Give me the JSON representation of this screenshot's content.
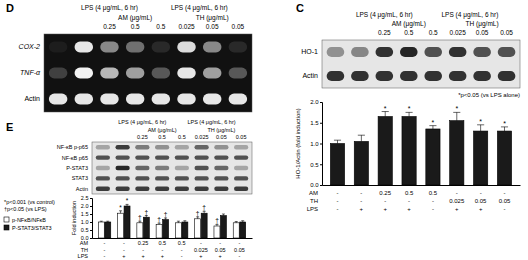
{
  "panels": [
    {
      "label": "D",
      "headers": [
        "LPS (4 μg/mL, 6 hr)",
        "LPS (4 μg/mL, 6 hr)"
      ],
      "agents": [
        "AM (μg/mL)",
        "TH (μg/mL)"
      ],
      "doses": [
        null,
        null,
        0.25,
        0.5,
        0.5,
        0.025,
        0.05,
        0.05
      ],
      "rows": [
        {
          "label": "COX-2",
          "intensity": [
            0.05,
            0.9,
            0.5,
            0.4,
            0.1,
            0.85,
            0.5,
            0.1
          ]
        },
        {
          "label": "TNF-α",
          "intensity": [
            0.2,
            0.95,
            0.7,
            0.6,
            0.3,
            0.9,
            0.6,
            0.3
          ]
        },
        {
          "label": "Actin",
          "intensity": [
            0.9,
            0.9,
            0.9,
            0.9,
            0.9,
            0.9,
            0.9,
            0.9
          ]
        }
      ]
    },
    {
      "label": "C",
      "headers": [
        "LPS (4 μg/mL, 6 hr)",
        "LPS (4 μg/mL, 6 hr)"
      ],
      "agents": [
        "AM (μg/mL)",
        "TH (μg/mL)"
      ],
      "doses": [
        null,
        null,
        0.25,
        0.5,
        0.5,
        0.025,
        0.05,
        0.05
      ],
      "rows": [
        {
          "label": "HO-1",
          "intensity": [
            0.4,
            0.45,
            0.85,
            0.9,
            0.7,
            0.85,
            0.7,
            0.7
          ]
        },
        {
          "label": "Actin",
          "intensity": [
            0.85,
            0.85,
            0.85,
            0.85,
            0.85,
            0.85,
            0.85,
            0.85
          ]
        }
      ]
    },
    {
      "label": "E",
      "headers": [
        "LPS (4 μg/mL, 6 hr)",
        "LPS (4 μg/mL, 6 hr)"
      ],
      "agents": [
        "AM (μg/mL)",
        "TH (μg/mL)"
      ],
      "doses": [
        null,
        null,
        0.25,
        0.5,
        0.5,
        0.025,
        0.05,
        0.05
      ],
      "rows": [
        {
          "label": "NF-κB p-p65",
          "intensity": [
            0.3,
            0.8,
            0.5,
            0.4,
            0.3,
            0.6,
            0.4,
            0.3
          ]
        },
        {
          "label": "NF-κB p65",
          "intensity": [
            0.7,
            0.7,
            0.7,
            0.7,
            0.7,
            0.7,
            0.7,
            0.7
          ]
        },
        {
          "label": "P-STAT3",
          "intensity": [
            0.3,
            0.9,
            0.6,
            0.5,
            0.3,
            0.7,
            0.6,
            0.3
          ]
        },
        {
          "label": "STAT3",
          "intensity": [
            0.7,
            0.7,
            0.7,
            0.7,
            0.7,
            0.7,
            0.7,
            0.7
          ]
        },
        {
          "label": "Actin",
          "intensity": [
            0.8,
            0.8,
            0.8,
            0.8,
            0.8,
            0.8,
            0.8,
            0.8
          ]
        }
      ]
    }
  ],
  "chart_data": [
    {
      "type": "bar",
      "y_label": "HO-1/Actin (fold induction)",
      "categories": [
        null,
        null,
        null,
        null,
        null,
        null,
        null,
        null
      ],
      "values": [
        1.0,
        1.05,
        1.65,
        1.65,
        1.35,
        1.55,
        1.3,
        1.3
      ],
      "errors": [
        0.08,
        0.15,
        0.12,
        0.1,
        0.08,
        0.2,
        0.15,
        0.1
      ],
      "significance": [
        null,
        null,
        "*",
        "*",
        "*",
        "*",
        "*",
        "*"
      ],
      "color": "#1a1a1a",
      "ylim": [
        0,
        2
      ],
      "yticks": [
        {
          "value": 0,
          "label": "0.0"
        },
        0.5,
        {
          "value": 1,
          "label": "1.0"
        },
        1.5,
        {
          "value": 2,
          "label": "2.0"
        }
      ],
      "grid": false,
      "annotations": [
        "*p<0.05 (vs LPS alone)"
      ],
      "condition_rows": [
        {
          "label": "AM",
          "values": [
            "-",
            "-",
            0.25,
            0.5,
            0.5,
            "-",
            "-",
            "-"
          ]
        },
        {
          "label": "TH",
          "values": [
            "-",
            "-",
            "-",
            "-",
            "-",
            0.025,
            0.05,
            0.05
          ]
        },
        {
          "label": "LPS",
          "values": [
            "-",
            "+",
            "+",
            "+",
            "-",
            "+",
            "+",
            "-"
          ]
        }
      ]
    },
    {
      "type": "bar",
      "y_label": "Fold induction",
      "categories": [
        null,
        null,
        null,
        null,
        null,
        null,
        null,
        null
      ],
      "series": [
        {
          "name": "p-NFκB/NFκB",
          "color": "#ffffff",
          "values": [
            1.0,
            1.55,
            0.95,
            0.85,
            0.95,
            1.2,
            0.75,
            0.95
          ],
          "errors": [
            0.05,
            0.15,
            0.1,
            0.08,
            0.1,
            0.12,
            0.1,
            0.08
          ],
          "significance": [
            null,
            "*",
            "†",
            "†",
            null,
            "†",
            "†",
            null
          ]
        },
        {
          "name": "P-STAT3/STAT3",
          "color": "#1a1a1a",
          "values": [
            1.0,
            2.0,
            1.3,
            1.15,
            1.0,
            1.55,
            1.4,
            1.0
          ],
          "errors": [
            0.05,
            0.1,
            0.1,
            0.1,
            0.08,
            0.12,
            0.1,
            0.08
          ],
          "significance": [
            null,
            "*",
            "†",
            "†",
            null,
            "†",
            null,
            null
          ]
        }
      ],
      "ylim": [
        0,
        2.5
      ],
      "yticks": [
        {
          "value": 0,
          "label": "0.0"
        },
        0.5,
        {
          "value": 1,
          "label": "1.0"
        },
        1.5,
        {
          "value": 2,
          "label": "2.0"
        },
        2.5
      ],
      "grid": false,
      "legend": "left",
      "annotations": [
        "*p<0.001 (vs control)",
        "†p<0.05 (vs LPS)"
      ],
      "condition_rows": [
        {
          "label": "AM",
          "values": [
            "-",
            "-",
            0.25,
            0.5,
            0.5,
            "-",
            "-",
            "-"
          ]
        },
        {
          "label": "TH",
          "values": [
            "-",
            "-",
            "-",
            "-",
            "-",
            0.025,
            0.05,
            0.05
          ]
        },
        {
          "label": "LPS",
          "values": [
            "-",
            "+",
            "+",
            "+",
            "-",
            "+",
            "+",
            "-"
          ]
        }
      ]
    }
  ]
}
